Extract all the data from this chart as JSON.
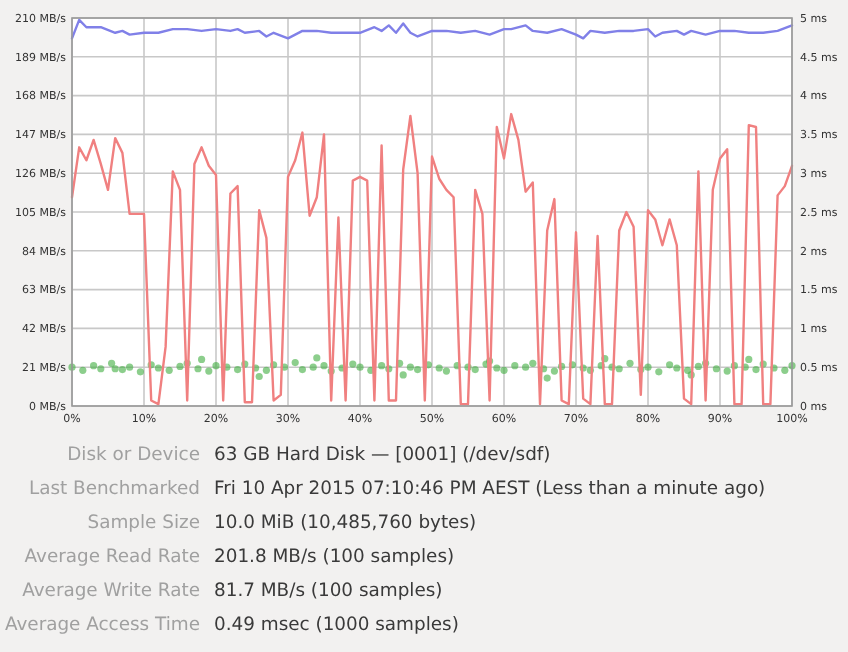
{
  "chart_data": {
    "type": "line",
    "xlim": [
      0,
      100
    ],
    "xticks": [
      {
        "value": 0,
        "label": "0%"
      },
      {
        "value": 10,
        "label": "10%"
      },
      {
        "value": 20,
        "label": "20%"
      },
      {
        "value": 30,
        "label": "30%"
      },
      {
        "value": 40,
        "label": "40%"
      },
      {
        "value": 50,
        "label": "50%"
      },
      {
        "value": 60,
        "label": "60%"
      },
      {
        "value": 70,
        "label": "70%"
      },
      {
        "value": 80,
        "label": "80%"
      },
      {
        "value": 90,
        "label": "90%"
      },
      {
        "value": 100,
        "label": "100%"
      }
    ],
    "ylim": [
      0,
      210
    ],
    "yticks": [
      {
        "value": 0,
        "label": "0 MB/s"
      },
      {
        "value": 21,
        "label": "21 MB/s"
      },
      {
        "value": 42,
        "label": "42 MB/s"
      },
      {
        "value": 63,
        "label": "63 MB/s"
      },
      {
        "value": 84,
        "label": "84 MB/s"
      },
      {
        "value": 105,
        "label": "105 MB/s"
      },
      {
        "value": 126,
        "label": "126 MB/s"
      },
      {
        "value": 147,
        "label": "147 MB/s"
      },
      {
        "value": 168,
        "label": "168 MB/s"
      },
      {
        "value": 189,
        "label": "189 MB/s"
      },
      {
        "value": 210,
        "label": "210 MB/s"
      }
    ],
    "y2lim": [
      0,
      5
    ],
    "y2ticks": [
      {
        "value": 0,
        "label": "0 ms"
      },
      {
        "value": 0.5,
        "label": "0.5 ms"
      },
      {
        "value": 1,
        "label": "1 ms"
      },
      {
        "value": 1.5,
        "label": "1.5 ms"
      },
      {
        "value": 2,
        "label": "2 ms"
      },
      {
        "value": 2.5,
        "label": "2.5 ms"
      },
      {
        "value": 3,
        "label": "3 ms"
      },
      {
        "value": 3.5,
        "label": "3.5 ms"
      },
      {
        "value": 4,
        "label": "4 ms"
      },
      {
        "value": 4.5,
        "label": "4.5 ms"
      },
      {
        "value": 5,
        "label": "5 ms"
      }
    ],
    "grid": true,
    "series": [
      {
        "type": "scatter",
        "axis": "y2",
        "color": "#3fae3f",
        "x": [
          0,
          1.5,
          3,
          4,
          5.5,
          7,
          8,
          9.5,
          11,
          12,
          13.5,
          15,
          16,
          17.5,
          19,
          20,
          21.5,
          23,
          24,
          25.5,
          27,
          28,
          29.5,
          31,
          32,
          33.5,
          35,
          36,
          37.5,
          39,
          40,
          41.5,
          43,
          44,
          45.5,
          47,
          48,
          49.5,
          51,
          52,
          53.5,
          55,
          56,
          57.5,
          59,
          60,
          61.5,
          63,
          64,
          65.5,
          67,
          68,
          69.5,
          71,
          72,
          73.5,
          75,
          76,
          77.5,
          79,
          80,
          81.5,
          83,
          84,
          85.5,
          87,
          88,
          89.5,
          91,
          92,
          93.5,
          95,
          96,
          97.5,
          99,
          100,
          6,
          18,
          26,
          34,
          46,
          58,
          66,
          74,
          86,
          94
        ],
        "values": [
          0.5,
          0.46,
          0.52,
          0.48,
          0.55,
          0.47,
          0.5,
          0.44,
          0.53,
          0.49,
          0.46,
          0.51,
          0.55,
          0.48,
          0.45,
          0.52,
          0.5,
          0.47,
          0.54,
          0.49,
          0.46,
          0.53,
          0.5,
          0.56,
          0.47,
          0.5,
          0.52,
          0.45,
          0.49,
          0.54,
          0.5,
          0.46,
          0.52,
          0.48,
          0.55,
          0.5,
          0.47,
          0.53,
          0.49,
          0.45,
          0.52,
          0.5,
          0.47,
          0.54,
          0.49,
          0.46,
          0.52,
          0.5,
          0.55,
          0.48,
          0.45,
          0.51,
          0.53,
          0.49,
          0.46,
          0.52,
          0.5,
          0.48,
          0.55,
          0.47,
          0.5,
          0.44,
          0.53,
          0.49,
          0.46,
          0.51,
          0.55,
          0.48,
          0.45,
          0.52,
          0.5,
          0.47,
          0.54,
          0.49,
          0.46,
          0.52,
          0.48,
          0.6,
          0.38,
          0.62,
          0.4,
          0.58,
          0.36,
          0.61,
          0.4,
          0.6
        ]
      },
      {
        "color": "#f08080",
        "x": [
          0,
          1,
          2,
          3,
          4,
          5,
          6,
          7,
          8,
          9,
          10,
          11,
          12,
          13,
          14,
          15,
          16,
          17,
          18,
          19,
          20,
          21,
          22,
          23,
          24,
          25,
          26,
          27,
          28,
          29,
          30,
          31,
          32,
          33,
          34,
          35,
          36,
          37,
          38,
          39,
          40,
          41,
          42,
          43,
          44,
          45,
          46,
          47,
          48,
          49,
          50,
          51,
          52,
          53,
          54,
          55,
          56,
          57,
          58,
          59,
          60,
          61,
          62,
          63,
          64,
          65,
          66,
          67,
          68,
          69,
          70,
          71,
          72,
          73,
          74,
          75,
          76,
          77,
          78,
          79,
          80,
          81,
          82,
          83,
          84,
          85,
          86,
          87,
          88,
          89,
          90,
          91,
          92,
          93,
          94,
          95,
          96,
          97,
          98,
          99,
          100
        ],
        "values": [
          113,
          140,
          133,
          144,
          131,
          117,
          145,
          137,
          104,
          104,
          104,
          3,
          1,
          32,
          127,
          117,
          3,
          131,
          140,
          130,
          125,
          3,
          115,
          119,
          2,
          2,
          106,
          91,
          3,
          6,
          124,
          133,
          148,
          103,
          113,
          147,
          3,
          102,
          3,
          122,
          124,
          122,
          3,
          141,
          3,
          3,
          128,
          157,
          126,
          3,
          135,
          123,
          117,
          113,
          1,
          1,
          117,
          104,
          3,
          151,
          134,
          158,
          144,
          116,
          121,
          1,
          95,
          112,
          3,
          1,
          94,
          4,
          1,
          92,
          1,
          1,
          95,
          105,
          97,
          6,
          106,
          101,
          87,
          101,
          87,
          4,
          1,
          127,
          3,
          117,
          134,
          139,
          1,
          1,
          152,
          151,
          1,
          1,
          114,
          119,
          130
        ]
      },
      {
        "color": "#8080e8",
        "x": [
          0,
          1,
          2,
          4,
          6,
          7,
          8,
          10,
          12,
          14,
          16,
          18,
          20,
          22,
          23,
          24,
          26,
          27,
          28,
          30,
          32,
          34,
          36,
          38,
          40,
          42,
          43,
          44,
          45,
          46,
          47,
          48,
          50,
          52,
          54,
          56,
          58,
          60,
          61,
          63,
          64,
          66,
          68,
          70,
          71,
          72,
          74,
          76,
          78,
          80,
          81,
          82,
          84,
          85,
          86,
          88,
          90,
          92,
          94,
          96,
          98,
          100
        ],
        "values": [
          199,
          209,
          205,
          205,
          202,
          203,
          201,
          202,
          202,
          204,
          204,
          203,
          204,
          203,
          204,
          202,
          203,
          200,
          202,
          199,
          203,
          203,
          202,
          202,
          202,
          205,
          203,
          206,
          202,
          207,
          202,
          200,
          203,
          203,
          202,
          203,
          201,
          204,
          204,
          206,
          203,
          202,
          204,
          201,
          199,
          203,
          202,
          203,
          203,
          204,
          200,
          202,
          203,
          201,
          203,
          201,
          203,
          203,
          202,
          202,
          203,
          206
        ]
      }
    ],
    "annotations": [
      "Disk or Device",
      "63 GB Hard Disk — [0001] (/dev/sdf)",
      "Last Benchmarked",
      "Fri 10 Apr 2015 07:10:46 PM AEST (Less than a minute ago)",
      "Sample Size",
      "10.0 MiB (10,485,760 bytes)",
      "Average Read Rate",
      "201.8 MB/s (100 samples)",
      "Average Write Rate",
      "81.7 MB/s (100 samples)",
      "Average Access Time",
      "0.49 msec (1000 samples)"
    ]
  }
}
